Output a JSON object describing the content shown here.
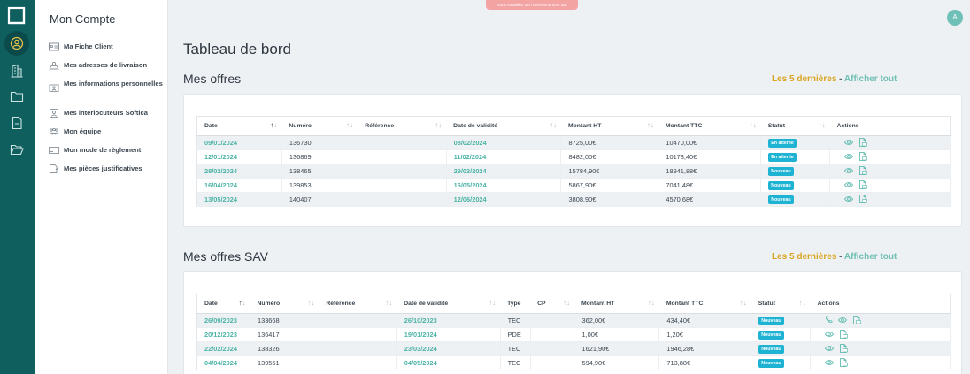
{
  "env_banner": "Vous travaillez sur l'environnement uat",
  "avatar_initial": "A",
  "sidebar": {
    "title": "Mon Compte",
    "items": [
      {
        "label": "Ma Fiche Client",
        "icon": "id-card-icon"
      },
      {
        "label": "Mes adresses de livraison",
        "icon": "addresses-icon"
      },
      {
        "label": "Mes informations personnelles",
        "icon": "personal-info-icon"
      },
      {
        "label": "Mes interlocuteurs Softica",
        "icon": "contact-icon"
      },
      {
        "label": "Mon équipe",
        "icon": "team-icon"
      },
      {
        "label": "Mon mode de règlement",
        "icon": "payment-card-icon"
      },
      {
        "label": "Mes pièces justificatives",
        "icon": "documents-icon"
      }
    ]
  },
  "rail": [
    {
      "icon": "logo-icon"
    },
    {
      "icon": "user-circle-icon",
      "active": true
    },
    {
      "icon": "building-icon"
    },
    {
      "icon": "folder-icon"
    },
    {
      "icon": "file-icon"
    },
    {
      "icon": "folder-open-icon"
    }
  ],
  "page_title": "Tableau de bord",
  "offers": {
    "title": "Mes offres",
    "last_label": "Les 5 dernières",
    "sep": " - ",
    "all_label": "Afficher tout",
    "columns": [
      "Date",
      "Numéro",
      "Référence",
      "Date de validité",
      "Montant HT",
      "Montant TTC",
      "Statut",
      "Actions"
    ],
    "rows": [
      {
        "date": "09/01/2024",
        "numero": "136730",
        "reference": "",
        "validite": "08/02/2024",
        "ht": "8725,00€",
        "ttc": "10470,00€",
        "statut": "En attente"
      },
      {
        "date": "12/01/2024",
        "numero": "136869",
        "reference": "",
        "validite": "11/02/2024",
        "ht": "8482,00€",
        "ttc": "10178,40€",
        "statut": "En attente"
      },
      {
        "date": "28/02/2024",
        "numero": "138465",
        "reference": "",
        "validite": "29/03/2024",
        "ht": "15784,90€",
        "ttc": "18941,88€",
        "statut": "Nouveau"
      },
      {
        "date": "16/04/2024",
        "numero": "139853",
        "reference": "",
        "validite": "16/05/2024",
        "ht": "5867,90€",
        "ttc": "7041,48€",
        "statut": "Nouveau"
      },
      {
        "date": "13/05/2024",
        "numero": "140407",
        "reference": "",
        "validite": "12/06/2024",
        "ht": "3808,90€",
        "ttc": "4570,68€",
        "statut": "Nouveau"
      }
    ]
  },
  "sav": {
    "title": "Mes offres SAV",
    "last_label": "Les 5 dernières",
    "sep": " - ",
    "all_label": "Afficher tout",
    "columns": [
      "Date",
      "Numéro",
      "Référence",
      "Date de validité",
      "Type",
      "CP",
      "Montant HT",
      "Montant TTC",
      "Statut",
      "Actions"
    ],
    "rows": [
      {
        "date": "26/09/2023",
        "numero": "133668",
        "reference": "",
        "validite": "26/10/2023",
        "type": "TEC",
        "cp": "",
        "ht": "362,00€",
        "ttc": "434,40€",
        "statut": "Nouveau",
        "phone": true
      },
      {
        "date": "20/12/2023",
        "numero": "136417",
        "reference": "",
        "validite": "19/01/2024",
        "type": "PDE",
        "cp": "",
        "ht": "1,00€",
        "ttc": "1,20€",
        "statut": "Nouveau",
        "phone": false
      },
      {
        "date": "22/02/2024",
        "numero": "138326",
        "reference": "",
        "validite": "23/03/2024",
        "type": "TEC",
        "cp": "",
        "ht": "1621,90€",
        "ttc": "1946,28€",
        "statut": "Nouveau",
        "phone": false
      },
      {
        "date": "04/04/2024",
        "numero": "139551",
        "reference": "",
        "validite": "04/05/2024",
        "type": "TEC",
        "cp": "",
        "ht": "594,90€",
        "ttc": "713,88€",
        "statut": "Nouveau",
        "phone": false
      }
    ]
  },
  "colors": {
    "rail": "#0f5f5f",
    "teal": "#4bb3a6",
    "badge": "#1fb3d3",
    "gold": "#d9a521"
  }
}
